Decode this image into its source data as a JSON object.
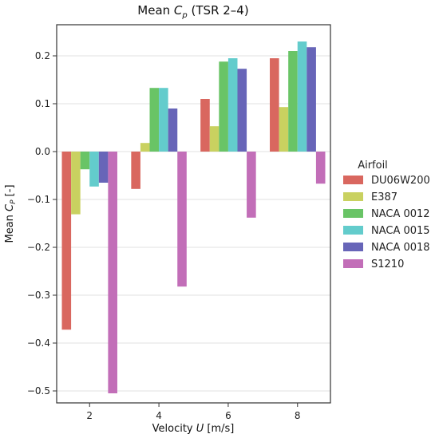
{
  "chart_data": {
    "type": "bar",
    "title": "Mean C_p (TSR 2–4)",
    "title_parts": {
      "prefix": "Mean ",
      "var": "C",
      "sub": "p",
      "suffix": " (TSR 2–4)"
    },
    "xlabel": "Velocity U [m/s]",
    "xlabel_parts": {
      "prefix": "Velocity ",
      "var": "U",
      "suffix": " [m/s]"
    },
    "ylabel": "Mean C_P [-]",
    "ylabel_parts": {
      "prefix": "Mean ",
      "var": "C",
      "sub": "P",
      "suffix": " [-]"
    },
    "categories": [
      "2",
      "4",
      "6",
      "8"
    ],
    "ylim": [
      -0.525,
      0.265
    ],
    "yticks": [
      0.2,
      0.1,
      0.0,
      -0.1,
      -0.2,
      -0.3,
      -0.4,
      -0.5
    ],
    "ytick_labels": [
      "0.2",
      "0.1",
      "0.0",
      "−0.1",
      "−0.2",
      "−0.3",
      "−0.4",
      "−0.5"
    ],
    "grid": true,
    "legend_title": "Airfoil",
    "legend_position": "right",
    "series": [
      {
        "name": "DU06W200",
        "color": "#d9675f",
        "values": [
          -0.372,
          -0.078,
          0.11,
          0.195
        ]
      },
      {
        "name": "E387",
        "color": "#c9d160",
        "values": [
          -0.131,
          0.018,
          0.053,
          0.093
        ]
      },
      {
        "name": "NACA 0012",
        "color": "#69c466",
        "values": [
          -0.037,
          0.133,
          0.188,
          0.21
        ]
      },
      {
        "name": "NACA 0015",
        "color": "#63cccc",
        "values": [
          -0.073,
          0.133,
          0.195,
          0.23
        ]
      },
      {
        "name": "NACA 0018",
        "color": "#6765b8",
        "values": [
          -0.065,
          0.09,
          0.173,
          0.218
        ]
      },
      {
        "name": "S1210",
        "color": "#c26eb8",
        "values": [
          -0.505,
          -0.282,
          -0.138,
          -0.067
        ]
      }
    ]
  }
}
